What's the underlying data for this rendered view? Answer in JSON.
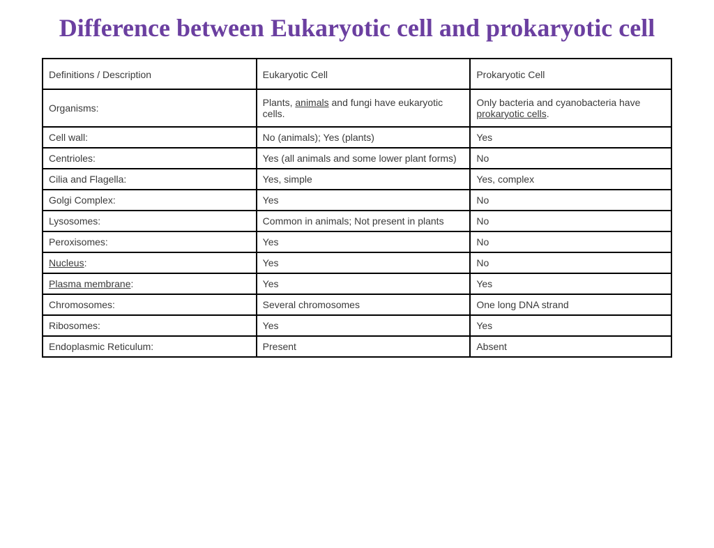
{
  "title": "Difference between Eukaryotic cell and prokaryotic cell",
  "title_color": "#6b3fa0",
  "title_fontsize": 36,
  "table": {
    "border_color": "#000000",
    "text_color": "#3a3a3a",
    "cell_fontsize": 14,
    "column_widths_pct": [
      34,
      34,
      32
    ],
    "columns": [
      "Definitions / Description",
      "Eukaryotic Cell",
      "Prokaryotic Cell"
    ],
    "rows": [
      {
        "label": "Organisms:",
        "euk_pre": "Plants, ",
        "euk_u": "animals",
        "euk_post": " and fungi have eukaryotic cells.",
        "pro_pre": "Only bacteria and cyanobacteria have ",
        "pro_u": "prokaryotic cells",
        "pro_post": "."
      },
      {
        "label": "Cell wall:",
        "euk": "No (animals); Yes (plants)",
        "pro": "Yes"
      },
      {
        "label": "Centrioles:",
        "euk": "Yes (all animals and some lower plant forms)",
        "pro": "No"
      },
      {
        "label": "Cilia and Flagella:",
        "euk": "Yes, simple",
        "pro": "Yes, complex"
      },
      {
        "label": "Golgi Complex:",
        "euk": "Yes",
        "pro": "No"
      },
      {
        "label": "Lysosomes:",
        "euk": "Common in animals; Not present in plants",
        "pro": "No"
      },
      {
        "label": "Peroxisomes:",
        "euk": "Yes",
        "pro": "No"
      },
      {
        "label_u": "Nucleus",
        "label_post": ":",
        "euk": "Yes",
        "pro": "No"
      },
      {
        "label_u": "Plasma membrane",
        "label_post": ":",
        "euk": "Yes",
        "pro": "Yes"
      },
      {
        "label": "Chromosomes:",
        "euk": "Several chromosomes",
        "pro": "One long DNA strand"
      },
      {
        "label": "Ribosomes:",
        "euk": "Yes",
        "pro": "Yes"
      },
      {
        "label": "Endoplasmic Reticulum:",
        "euk": "Present",
        "pro": "Absent"
      }
    ]
  }
}
